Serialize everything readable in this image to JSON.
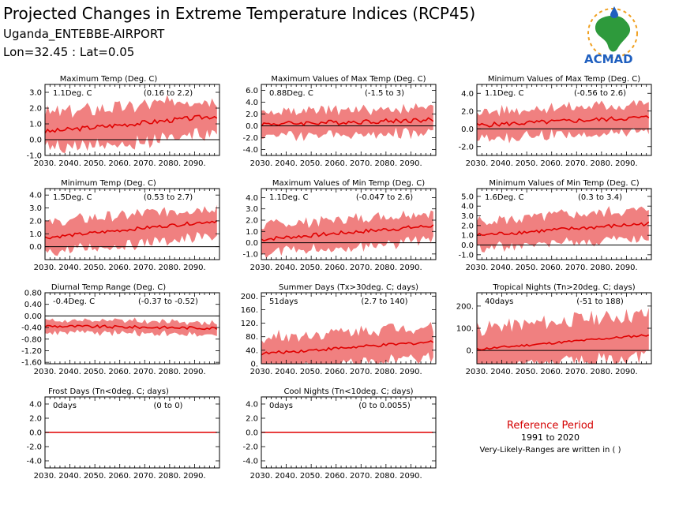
{
  "header": {
    "title": "Projected Changes in Extreme Temperature Indices (RCP45)",
    "station": "Uganda_ENTEBBE-AIRPORT",
    "coords": "Lon=32.45 : Lat=0.05"
  },
  "logo": {
    "text": "ACMAD"
  },
  "reference": {
    "title": "Reference Period",
    "period": "1991 to 2020",
    "note": "Very-Likely-Ranges are written in ( )"
  },
  "colors": {
    "band": "#f08080",
    "line": "#e00000",
    "zero": "#000000",
    "logo_blue": "#1f5fbf",
    "logo_green": "#2e9a3c",
    "logo_orange": "#f0a020"
  },
  "chart_data": [
    {
      "id": "p0",
      "type": "area",
      "title": "Maximum Temp (Deg. C)",
      "change": "1.1Deg. C",
      "range": "(0.16 to 2.2)",
      "x": [
        2030,
        2099
      ],
      "xticks": [
        "2030.",
        "2040.",
        "2050.",
        "2060.",
        "2070.",
        "2080.",
        "2090."
      ],
      "ylim": [
        -1.0,
        3.5
      ],
      "yticks": [
        "-1.0",
        "0.0",
        "1.0",
        "2.0",
        "3.0"
      ],
      "ytick_values": [
        -1,
        0,
        1,
        2,
        3
      ],
      "mean_start": 0.5,
      "mean_end": 1.5,
      "half_width": 1.2,
      "noise": 0.6
    },
    {
      "id": "p1",
      "type": "area",
      "title": "Maximum Values of Max Temp (Deg. C)",
      "change": "0.88Deg. C",
      "range": "(-1.5 to 3)",
      "x": [
        2030,
        2099
      ],
      "xticks": [
        "2030.",
        "2040.",
        "2050.",
        "2060.",
        "2070.",
        "2080.",
        "2090."
      ],
      "ylim": [
        -5.0,
        7.0
      ],
      "yticks": [
        "-4.0",
        "-2.0",
        "0.0",
        "2.0",
        "4.0",
        "6.0"
      ],
      "ytick_values": [
        -4,
        -2,
        0,
        2,
        4,
        6
      ],
      "mean_start": 0.3,
      "mean_end": 1.0,
      "half_width": 2.2,
      "noise": 1.6
    },
    {
      "id": "p2",
      "type": "area",
      "title": "Minimum Values of Max Temp (Deg. C)",
      "change": "1.1Deg. C",
      "range": "(-0.56 to 2.6)",
      "x": [
        2030,
        2099
      ],
      "xticks": [
        "2030.",
        "2040.",
        "2050.",
        "2060.",
        "2070.",
        "2080.",
        "2090."
      ],
      "ylim": [
        -3.0,
        5.0
      ],
      "yticks": [
        "-2.0",
        "0.0",
        "2.0",
        "4.0"
      ],
      "ytick_values": [
        -2,
        0,
        2,
        4
      ],
      "mean_start": 0.4,
      "mean_end": 1.3,
      "half_width": 1.6,
      "noise": 1.0
    },
    {
      "id": "p3",
      "type": "area",
      "title": "Minimum Temp (Deg. C)",
      "change": "1.5Deg. C",
      "range": "(0.53 to 2.7)",
      "x": [
        2030,
        2099
      ],
      "xticks": [
        "2030.",
        "2040.",
        "2050.",
        "2060.",
        "2070.",
        "2080.",
        "2090."
      ],
      "ylim": [
        -1.0,
        4.5
      ],
      "yticks": [
        "0.0",
        "1.0",
        "2.0",
        "3.0",
        "4.0"
      ],
      "ytick_values": [
        0,
        1,
        2,
        3,
        4
      ],
      "mean_start": 0.7,
      "mean_end": 2.0,
      "half_width": 1.2,
      "noise": 0.5
    },
    {
      "id": "p4",
      "type": "area",
      "title": "Maximum Values of Min Temp (Deg. C)",
      "change": "1.1Deg. C",
      "range": "(-0.047 to 2.6)",
      "x": [
        2030,
        2099
      ],
      "xticks": [
        "2030.",
        "2040.",
        "2050.",
        "2060.",
        "2070.",
        "2080.",
        "2090."
      ],
      "ylim": [
        -1.5,
        4.8
      ],
      "yticks": [
        "-1.0",
        "0.0",
        "1.0",
        "2.0",
        "3.0",
        "4.0"
      ],
      "ytick_values": [
        -1,
        0,
        1,
        2,
        3,
        4
      ],
      "mean_start": 0.3,
      "mean_end": 1.5,
      "half_width": 1.3,
      "noise": 0.7
    },
    {
      "id": "p5",
      "type": "area",
      "title": "Minimum Values of Min Temp (Deg. C)",
      "change": "1.6Deg. C",
      "range": "(0.3 to 3.4)",
      "x": [
        2030,
        2099
      ],
      "xticks": [
        "2030.",
        "2040.",
        "2050.",
        "2060.",
        "2070.",
        "2080.",
        "2090."
      ],
      "ylim": [
        -1.5,
        5.8
      ],
      "yticks": [
        "-1.0",
        "0.0",
        "1.0",
        "2.0",
        "3.0",
        "4.0",
        "5.0"
      ],
      "ytick_values": [
        -1,
        0,
        1,
        2,
        3,
        4,
        5
      ],
      "mean_start": 1.0,
      "mean_end": 2.2,
      "half_width": 1.5,
      "noise": 0.8
    },
    {
      "id": "p6",
      "type": "area",
      "title": "Diurnal Temp Range (Deg. C)",
      "change": "-0.4Deg. C",
      "range": "(-0.37 to -0.52)",
      "x": [
        2030,
        2099
      ],
      "xticks": [
        "2030.",
        "2040.",
        "2050.",
        "2060.",
        "2070.",
        "2080.",
        "2090."
      ],
      "ylim": [
        -1.65,
        0.8
      ],
      "yticks": [
        "-1.60",
        "-1.20",
        "-0.80",
        "-0.40",
        "0.00",
        "0.40",
        "0.80"
      ],
      "ytick_values": [
        -1.6,
        -1.2,
        -0.8,
        -0.4,
        0,
        0.4,
        0.8
      ],
      "mean_start": -0.35,
      "mean_end": -0.42,
      "half_width": 0.22,
      "noise": 0.2
    },
    {
      "id": "p7",
      "type": "area",
      "title": "Summer Days (Tx>30deg. C; days)",
      "change": "51days",
      "range": "(2.7 to 140)",
      "x": [
        2030,
        2099
      ],
      "xticks": [
        "2030.",
        "2040.",
        "2050.",
        "2060.",
        "2070.",
        "2080.",
        "2090."
      ],
      "ylim": [
        0,
        210
      ],
      "yticks": [
        "0.",
        "40.",
        "80.",
        "120.",
        "160.",
        "200."
      ],
      "ytick_values": [
        0,
        40,
        80,
        120,
        160,
        200
      ],
      "mean_start": 30,
      "mean_end": 65,
      "half_width": 50,
      "noise": 18
    },
    {
      "id": "p8",
      "type": "area",
      "title": "Tropical Nights (Tn>20deg. C; days)",
      "change": "40days",
      "range": "(-51 to 188)",
      "x": [
        2030,
        2099
      ],
      "xticks": [
        "2030.",
        "2040.",
        "2050.",
        "2060.",
        "2070.",
        "2080.",
        "2090."
      ],
      "ylim": [
        -60,
        260
      ],
      "yticks": [
        "0.",
        "100.",
        "200."
      ],
      "ytick_values": [
        0,
        100,
        200
      ],
      "mean_start": 5,
      "mean_end": 70,
      "half_width": 100,
      "noise": 20
    },
    {
      "id": "p9",
      "type": "area",
      "title": "Frost Days (Tn<0deg. C; days)",
      "change": "0days",
      "range": "(0 to 0)",
      "x": [
        2030,
        2099
      ],
      "xticks": [
        "2030.",
        "2040.",
        "2050.",
        "2060.",
        "2070.",
        "2080.",
        "2090."
      ],
      "ylim": [
        -5.0,
        5.0
      ],
      "yticks": [
        "-4.0",
        "-2.0",
        "0.0",
        "2.0",
        "4.0"
      ],
      "ytick_values": [
        -4,
        -2,
        0,
        2,
        4
      ],
      "mean_start": 0,
      "mean_end": 0,
      "half_width": 0,
      "noise": 0
    },
    {
      "id": "p10",
      "type": "area",
      "title": "Cool Nights (Tn<10deg. C; days)",
      "change": "0days",
      "range": "(0 to 0.0055)",
      "x": [
        2030,
        2099
      ],
      "xticks": [
        "2030.",
        "2040.",
        "2050.",
        "2060.",
        "2070.",
        "2080.",
        "2090."
      ],
      "ylim": [
        -5.0,
        5.0
      ],
      "yticks": [
        "-4.0",
        "-2.0",
        "0.0",
        "2.0",
        "4.0"
      ],
      "ytick_values": [
        -4,
        -2,
        0,
        2,
        4
      ],
      "mean_start": 0,
      "mean_end": 0,
      "half_width": 0.02,
      "noise": 0
    }
  ]
}
